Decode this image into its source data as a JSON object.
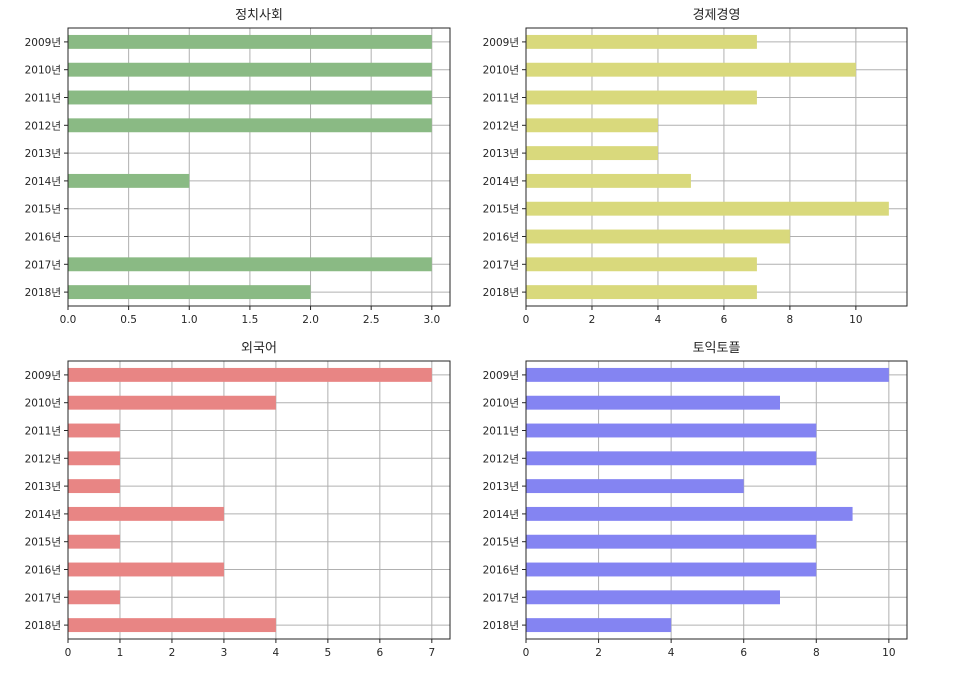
{
  "chart_data": [
    {
      "type": "bar",
      "orientation": "horizontal",
      "title": "정치사회",
      "categories": [
        "2009년",
        "2010년",
        "2011년",
        "2012년",
        "2013년",
        "2014년",
        "2015년",
        "2016년",
        "2017년",
        "2018년"
      ],
      "values": [
        3,
        3,
        3,
        3,
        0,
        1,
        0,
        0,
        3,
        2
      ],
      "xlim": [
        0,
        3.15
      ],
      "xticks": [
        0.0,
        0.5,
        1.0,
        1.5,
        2.0,
        2.5,
        3.0
      ],
      "xtick_labels": [
        "0.0",
        "0.5",
        "1.0",
        "1.5",
        "2.0",
        "2.5",
        "3.0"
      ],
      "color": "#8aba84",
      "grid": true,
      "xlabel": "",
      "ylabel": ""
    },
    {
      "type": "bar",
      "orientation": "horizontal",
      "title": "경제경영",
      "categories": [
        "2009년",
        "2010년",
        "2011년",
        "2012년",
        "2013년",
        "2014년",
        "2015년",
        "2016년",
        "2017년",
        "2018년"
      ],
      "values": [
        7,
        10,
        7,
        4,
        4,
        5,
        11,
        8,
        7,
        7
      ],
      "xlim": [
        0,
        11.55
      ],
      "xticks": [
        0,
        2,
        4,
        6,
        8,
        10
      ],
      "xtick_labels": [
        "0",
        "2",
        "4",
        "6",
        "8",
        "10"
      ],
      "color": "#d9d97c",
      "grid": true,
      "xlabel": "",
      "ylabel": ""
    },
    {
      "type": "bar",
      "orientation": "horizontal",
      "title": "외국어",
      "categories": [
        "2009년",
        "2010년",
        "2011년",
        "2012년",
        "2013년",
        "2014년",
        "2015년",
        "2016년",
        "2017년",
        "2018년"
      ],
      "values": [
        7,
        4,
        1,
        1,
        1,
        3,
        1,
        3,
        1,
        4
      ],
      "xlim": [
        0,
        7.35
      ],
      "xticks": [
        0,
        1,
        2,
        3,
        4,
        5,
        6,
        7
      ],
      "xtick_labels": [
        "0",
        "1",
        "2",
        "3",
        "4",
        "5",
        "6",
        "7"
      ],
      "color": "#e88584",
      "grid": true,
      "xlabel": "",
      "ylabel": ""
    },
    {
      "type": "bar",
      "orientation": "horizontal",
      "title": "토익토플",
      "categories": [
        "2009년",
        "2010년",
        "2011년",
        "2012년",
        "2013년",
        "2014년",
        "2015년",
        "2016년",
        "2017년",
        "2018년"
      ],
      "values": [
        10,
        7,
        8,
        8,
        6,
        9,
        8,
        8,
        7,
        4
      ],
      "xlim": [
        0,
        10.5
      ],
      "xticks": [
        0,
        2,
        4,
        6,
        8,
        10
      ],
      "xtick_labels": [
        "0",
        "2",
        "4",
        "6",
        "8",
        "10"
      ],
      "color": "#8484f2",
      "grid": true,
      "xlabel": "",
      "ylabel": ""
    }
  ]
}
